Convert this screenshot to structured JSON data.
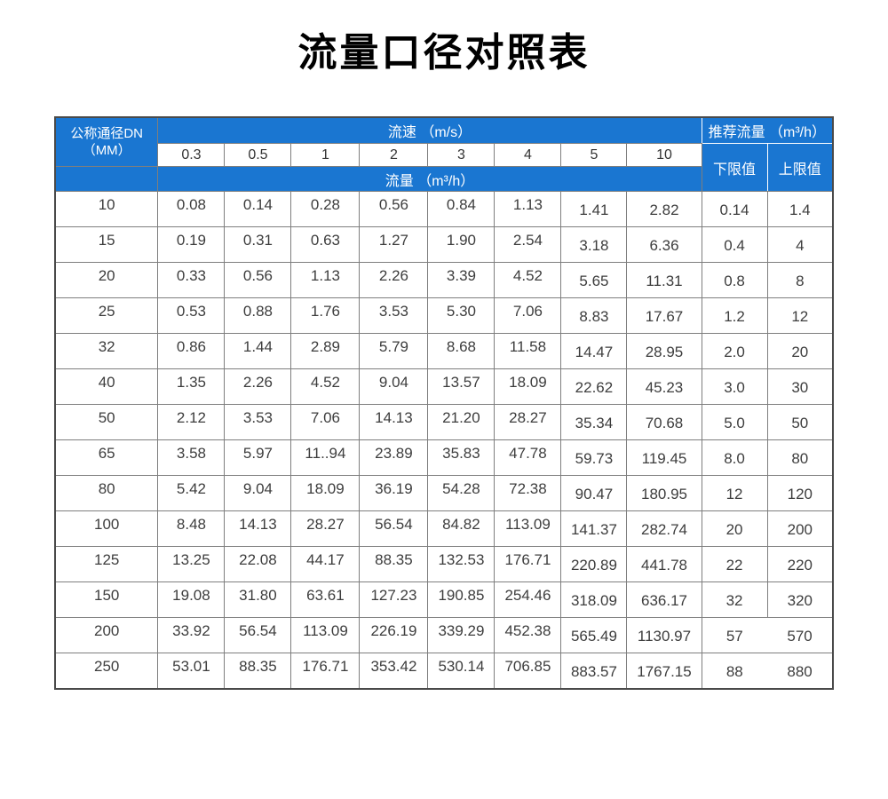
{
  "title": "流量口径对照表",
  "table": {
    "dn_header": "公称通径DN\n（MM）",
    "velocity_header": "流速 （m/s）",
    "velocity_values": [
      "0.3",
      "0.5",
      "1",
      "2",
      "3",
      "4",
      "5",
      "10"
    ],
    "flow_header": "流量 （m³/h）",
    "recommended_header": "推荐流量 （m³/h）",
    "lower_limit_label": "下限值",
    "upper_limit_label": "上限值",
    "rows": [
      {
        "dn": "10",
        "flows": [
          "0.08",
          "0.14",
          "0.28",
          "0.56",
          "0.84",
          "1.13",
          "1.41",
          "2.82"
        ],
        "lower": "0.14",
        "upper": "1.4"
      },
      {
        "dn": "15",
        "flows": [
          "0.19",
          "0.31",
          "0.63",
          "1.27",
          "1.90",
          "2.54",
          "3.18",
          "6.36"
        ],
        "lower": "0.4",
        "upper": "4"
      },
      {
        "dn": "20",
        "flows": [
          "0.33",
          "0.56",
          "1.13",
          "2.26",
          "3.39",
          "4.52",
          "5.65",
          "11.31"
        ],
        "lower": "0.8",
        "upper": "8"
      },
      {
        "dn": "25",
        "flows": [
          "0.53",
          "0.88",
          "1.76",
          "3.53",
          "5.30",
          "7.06",
          "8.83",
          "17.67"
        ],
        "lower": "1.2",
        "upper": "12"
      },
      {
        "dn": "32",
        "flows": [
          "0.86",
          "1.44",
          "2.89",
          "5.79",
          "8.68",
          "11.58",
          "14.47",
          "28.95"
        ],
        "lower": "2.0",
        "upper": "20"
      },
      {
        "dn": "40",
        "flows": [
          "1.35",
          "2.26",
          "4.52",
          "9.04",
          "13.57",
          "18.09",
          "22.62",
          "45.23"
        ],
        "lower": "3.0",
        "upper": "30"
      },
      {
        "dn": "50",
        "flows": [
          "2.12",
          "3.53",
          "7.06",
          "14.13",
          "21.20",
          "28.27",
          "35.34",
          "70.68"
        ],
        "lower": "5.0",
        "upper": "50"
      },
      {
        "dn": "65",
        "flows": [
          "3.58",
          "5.97",
          "11..94",
          "23.89",
          "35.83",
          "47.78",
          "59.73",
          "119.45"
        ],
        "lower": "8.0",
        "upper": "80"
      },
      {
        "dn": "80",
        "flows": [
          "5.42",
          "9.04",
          "18.09",
          "36.19",
          "54.28",
          "72.38",
          "90.47",
          "180.95"
        ],
        "lower": "12",
        "upper": "120"
      },
      {
        "dn": "100",
        "flows": [
          "8.48",
          "14.13",
          "28.27",
          "56.54",
          "84.82",
          "113.09",
          "141.37",
          "282.74"
        ],
        "lower": "20",
        "upper": "200"
      },
      {
        "dn": "125",
        "flows": [
          "13.25",
          "22.08",
          "44.17",
          "88.35",
          "132.53",
          "176.71",
          "220.89",
          "441.78"
        ],
        "lower": "22",
        "upper": "220"
      },
      {
        "dn": "150",
        "flows": [
          "19.08",
          "31.80",
          "63.61",
          "127.23",
          "190.85",
          "254.46",
          "318.09",
          "636.17"
        ],
        "lower": "32",
        "upper": "320"
      },
      {
        "dn": "200",
        "flows": [
          "33.92",
          "56.54",
          "113.09",
          "226.19",
          "339.29",
          "452.38",
          "565.49",
          "1130.97"
        ],
        "lower": "57",
        "upper": "570"
      },
      {
        "dn": "250",
        "flows": [
          "53.01",
          "88.35",
          "176.71",
          "353.42",
          "530.14",
          "706.85",
          "883.57",
          "1767.15"
        ],
        "lower": "88",
        "upper": "880"
      }
    ]
  },
  "colors": {
    "header_blue": "#1a76d1",
    "border_gray": "#7e7e7e",
    "outer_border": "#4a4a4a",
    "data_text": "#3d3d3d",
    "title_text": "#000000"
  }
}
